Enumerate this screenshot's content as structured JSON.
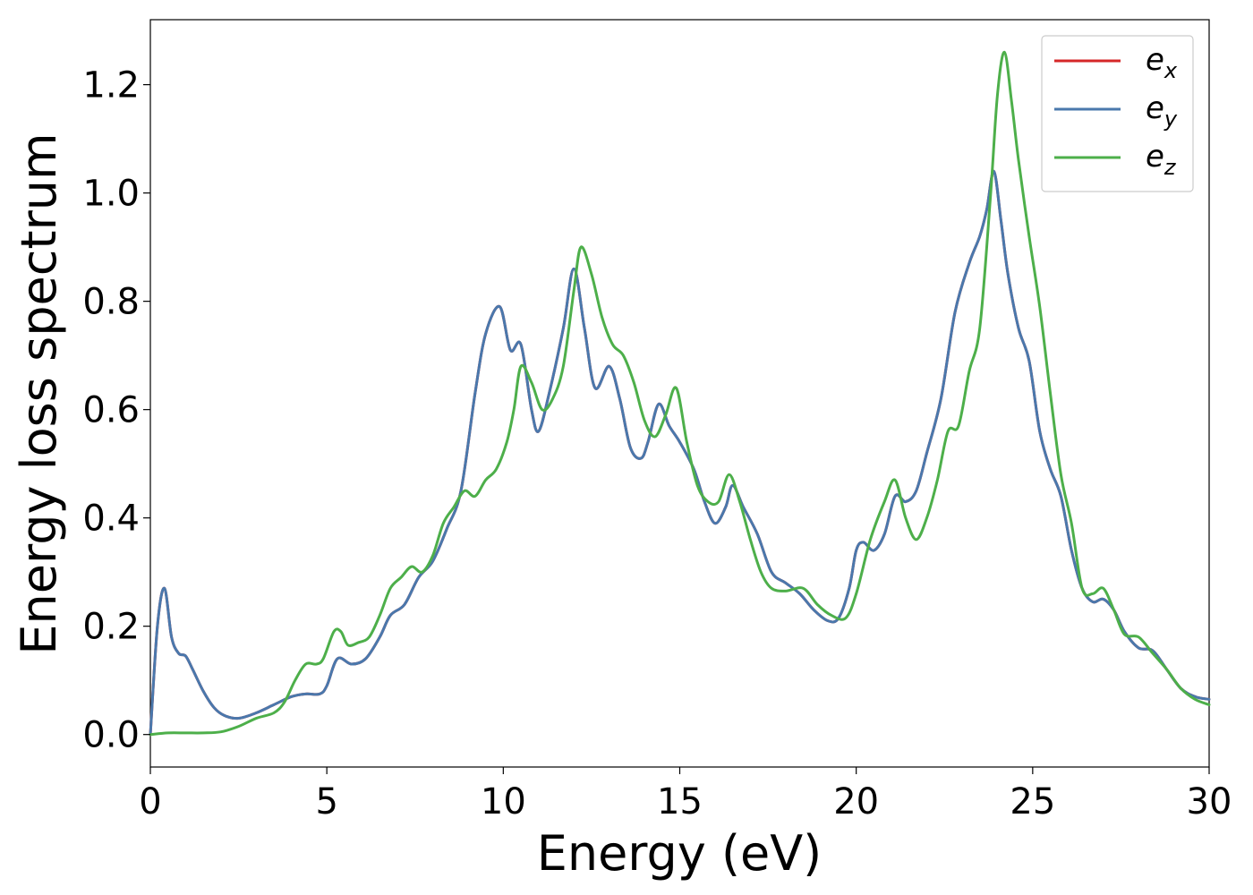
{
  "chart_data": {
    "type": "line",
    "xlabel": "Energy (eV)",
    "ylabel": "Energy loss spectrum",
    "xlim": [
      0,
      30
    ],
    "ylim": [
      -0.06,
      1.32
    ],
    "xticks": [
      0,
      5,
      10,
      15,
      20,
      25,
      30
    ],
    "xtick_labels": [
      "0",
      "5",
      "10",
      "15",
      "20",
      "25",
      "30"
    ],
    "yticks": [
      0.0,
      0.2,
      0.4,
      0.6,
      0.8,
      1.0,
      1.2
    ],
    "ytick_labels": [
      "0.0",
      "0.2",
      "0.4",
      "0.6",
      "0.8",
      "1.0",
      "1.2"
    ],
    "grid": false,
    "legend_position": "top-right",
    "legend": [
      {
        "base": "e",
        "sub": "x",
        "color": "#d62728"
      },
      {
        "base": "e",
        "sub": "y",
        "color": "#4a78ac"
      },
      {
        "base": "e",
        "sub": "z",
        "color": "#4daf4a"
      }
    ],
    "series": [
      {
        "name": "ex",
        "color": "#d62728",
        "x": [
          0,
          0.2,
          0.4,
          0.6,
          0.8,
          1.0,
          1.2,
          1.5,
          1.8,
          2.1,
          2.5,
          3.0,
          3.5,
          4.0,
          4.4,
          4.8,
          5.0,
          5.3,
          5.7,
          6.1,
          6.5,
          6.8,
          7.2,
          7.6,
          8.0,
          8.4,
          8.8,
          9.2,
          9.5,
          9.9,
          10.2,
          10.5,
          10.8,
          11.0,
          11.3,
          11.7,
          12.0,
          12.3,
          12.6,
          13.0,
          13.3,
          13.6,
          13.9,
          14.1,
          14.4,
          14.7,
          15.0,
          15.4,
          15.7,
          16.0,
          16.3,
          16.5,
          16.8,
          17.2,
          17.6,
          18.0,
          18.4,
          18.8,
          19.2,
          19.5,
          19.8,
          20.0,
          20.2,
          20.5,
          20.8,
          21.1,
          21.4,
          21.7,
          22.0,
          22.4,
          22.8,
          23.2,
          23.5,
          23.7,
          23.9,
          24.1,
          24.3,
          24.6,
          24.9,
          25.2,
          25.5,
          25.8,
          26.1,
          26.4,
          26.7,
          27.0,
          27.3,
          27.6,
          28.0,
          28.4,
          28.8,
          29.2,
          29.6,
          30.0
        ],
        "y": [
          0.0,
          0.2,
          0.27,
          0.18,
          0.15,
          0.145,
          0.12,
          0.08,
          0.05,
          0.035,
          0.03,
          0.04,
          0.055,
          0.07,
          0.075,
          0.075,
          0.09,
          0.14,
          0.13,
          0.14,
          0.18,
          0.22,
          0.24,
          0.29,
          0.32,
          0.38,
          0.45,
          0.63,
          0.74,
          0.79,
          0.71,
          0.72,
          0.6,
          0.56,
          0.63,
          0.75,
          0.86,
          0.75,
          0.64,
          0.68,
          0.62,
          0.53,
          0.51,
          0.54,
          0.61,
          0.57,
          0.54,
          0.49,
          0.43,
          0.39,
          0.42,
          0.46,
          0.42,
          0.37,
          0.3,
          0.28,
          0.26,
          0.23,
          0.21,
          0.215,
          0.27,
          0.34,
          0.355,
          0.34,
          0.37,
          0.44,
          0.43,
          0.45,
          0.52,
          0.62,
          0.78,
          0.87,
          0.92,
          0.97,
          1.04,
          0.95,
          0.85,
          0.75,
          0.69,
          0.56,
          0.49,
          0.44,
          0.34,
          0.27,
          0.245,
          0.25,
          0.23,
          0.19,
          0.16,
          0.155,
          0.12,
          0.085,
          0.07,
          0.065
        ]
      },
      {
        "name": "ey",
        "color": "#4a78ac",
        "x": [
          0,
          0.2,
          0.4,
          0.6,
          0.8,
          1.0,
          1.2,
          1.5,
          1.8,
          2.1,
          2.5,
          3.0,
          3.5,
          4.0,
          4.4,
          4.8,
          5.0,
          5.3,
          5.7,
          6.1,
          6.5,
          6.8,
          7.2,
          7.6,
          8.0,
          8.4,
          8.8,
          9.2,
          9.5,
          9.9,
          10.2,
          10.5,
          10.8,
          11.0,
          11.3,
          11.7,
          12.0,
          12.3,
          12.6,
          13.0,
          13.3,
          13.6,
          13.9,
          14.1,
          14.4,
          14.7,
          15.0,
          15.4,
          15.7,
          16.0,
          16.3,
          16.5,
          16.8,
          17.2,
          17.6,
          18.0,
          18.4,
          18.8,
          19.2,
          19.5,
          19.8,
          20.0,
          20.2,
          20.5,
          20.8,
          21.1,
          21.4,
          21.7,
          22.0,
          22.4,
          22.8,
          23.2,
          23.5,
          23.7,
          23.9,
          24.1,
          24.3,
          24.6,
          24.9,
          25.2,
          25.5,
          25.8,
          26.1,
          26.4,
          26.7,
          27.0,
          27.3,
          27.6,
          28.0,
          28.4,
          28.8,
          29.2,
          29.6,
          30.0
        ],
        "y": [
          0.0,
          0.2,
          0.27,
          0.18,
          0.15,
          0.145,
          0.12,
          0.08,
          0.05,
          0.035,
          0.03,
          0.04,
          0.055,
          0.07,
          0.075,
          0.075,
          0.09,
          0.14,
          0.13,
          0.14,
          0.18,
          0.22,
          0.24,
          0.29,
          0.32,
          0.38,
          0.45,
          0.63,
          0.74,
          0.79,
          0.71,
          0.72,
          0.6,
          0.56,
          0.63,
          0.75,
          0.86,
          0.75,
          0.64,
          0.68,
          0.62,
          0.53,
          0.51,
          0.54,
          0.61,
          0.57,
          0.54,
          0.49,
          0.43,
          0.39,
          0.42,
          0.46,
          0.42,
          0.37,
          0.3,
          0.28,
          0.26,
          0.23,
          0.21,
          0.215,
          0.27,
          0.34,
          0.355,
          0.34,
          0.37,
          0.44,
          0.43,
          0.45,
          0.52,
          0.62,
          0.78,
          0.87,
          0.92,
          0.97,
          1.04,
          0.95,
          0.85,
          0.75,
          0.69,
          0.56,
          0.49,
          0.44,
          0.34,
          0.27,
          0.245,
          0.25,
          0.23,
          0.19,
          0.16,
          0.155,
          0.12,
          0.085,
          0.07,
          0.065
        ]
      },
      {
        "name": "ez",
        "color": "#4daf4a",
        "x": [
          0,
          0.5,
          1.0,
          1.5,
          2.0,
          2.5,
          3.0,
          3.5,
          3.8,
          4.1,
          4.4,
          4.7,
          4.9,
          5.2,
          5.4,
          5.6,
          5.9,
          6.2,
          6.5,
          6.8,
          7.1,
          7.4,
          7.7,
          8.0,
          8.3,
          8.6,
          8.9,
          9.2,
          9.5,
          9.8,
          10.1,
          10.3,
          10.5,
          10.8,
          11.1,
          11.4,
          11.7,
          12.0,
          12.2,
          12.5,
          12.8,
          13.1,
          13.4,
          13.7,
          14.0,
          14.3,
          14.6,
          14.9,
          15.2,
          15.5,
          15.8,
          16.1,
          16.4,
          16.7,
          17.0,
          17.3,
          17.6,
          18.0,
          18.5,
          18.9,
          19.3,
          19.7,
          20.0,
          20.4,
          20.8,
          21.1,
          21.4,
          21.7,
          22.0,
          22.3,
          22.6,
          22.9,
          23.2,
          23.5,
          23.8,
          24.0,
          24.2,
          24.4,
          24.6,
          24.9,
          25.2,
          25.5,
          25.8,
          26.1,
          26.4,
          26.7,
          27.0,
          27.3,
          27.6,
          28.0,
          28.4,
          28.8,
          29.2,
          29.6,
          30.0
        ],
        "y": [
          0.0,
          0.003,
          0.003,
          0.003,
          0.005,
          0.015,
          0.03,
          0.04,
          0.06,
          0.1,
          0.13,
          0.13,
          0.14,
          0.19,
          0.19,
          0.165,
          0.17,
          0.18,
          0.22,
          0.27,
          0.29,
          0.31,
          0.3,
          0.33,
          0.39,
          0.42,
          0.45,
          0.44,
          0.47,
          0.49,
          0.54,
          0.6,
          0.68,
          0.65,
          0.6,
          0.62,
          0.68,
          0.82,
          0.9,
          0.85,
          0.77,
          0.72,
          0.7,
          0.65,
          0.58,
          0.55,
          0.59,
          0.64,
          0.54,
          0.46,
          0.43,
          0.43,
          0.48,
          0.43,
          0.36,
          0.3,
          0.27,
          0.265,
          0.27,
          0.24,
          0.22,
          0.215,
          0.26,
          0.36,
          0.43,
          0.47,
          0.4,
          0.36,
          0.4,
          0.47,
          0.56,
          0.57,
          0.67,
          0.75,
          0.99,
          1.18,
          1.26,
          1.17,
          1.06,
          0.92,
          0.79,
          0.63,
          0.48,
          0.39,
          0.27,
          0.26,
          0.27,
          0.23,
          0.185,
          0.18,
          0.15,
          0.12,
          0.085,
          0.065,
          0.055
        ]
      }
    ]
  }
}
